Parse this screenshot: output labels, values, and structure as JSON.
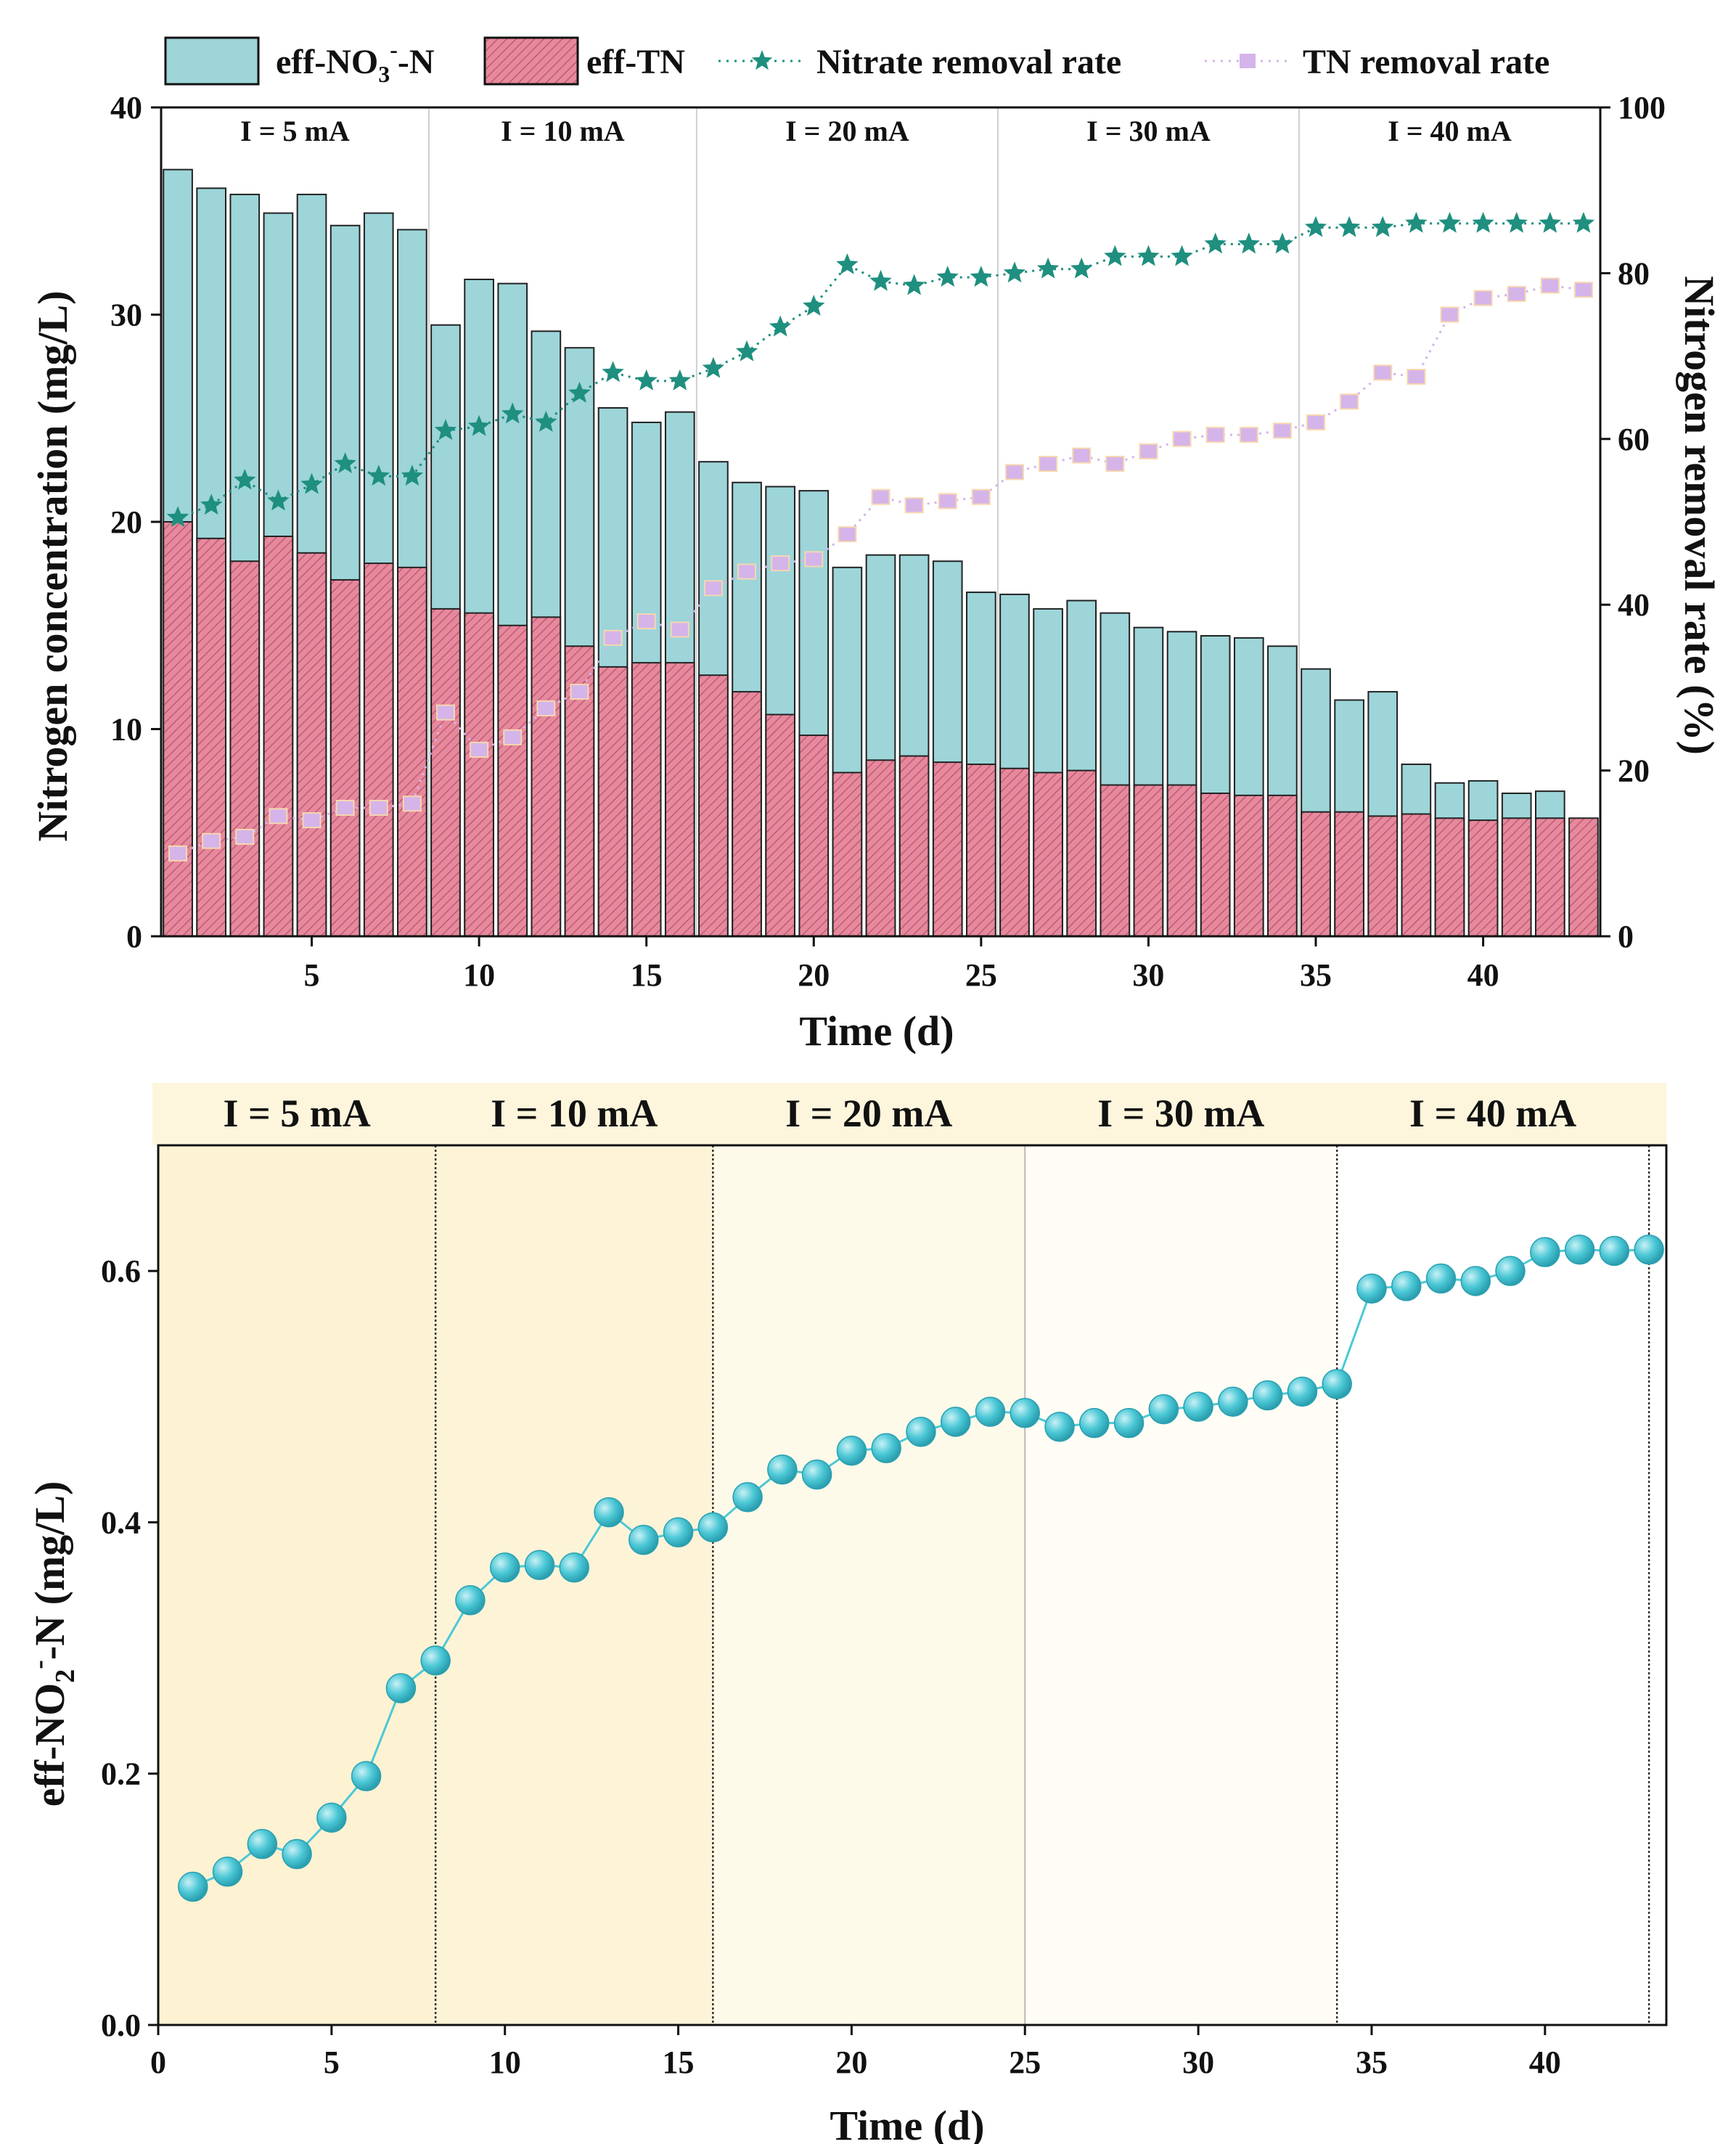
{
  "colors": {
    "no3_bar": "#9dd5d9",
    "tn_bar": "#e6899d",
    "tn_hatch": "#c25a74",
    "nitrate_marker": "#1f8f7f",
    "tn_marker": "#d5b4ea",
    "no2_marker": "#4cc8d6",
    "phase_bg": "#fdf6dc"
  },
  "chart_data": [
    {
      "type": "bar",
      "legend": {
        "no3": {
          "pre": "eff-NO",
          "sub": "3",
          "sup": "-",
          "post": "-N"
        },
        "tn": "eff-TN",
        "nitrate": "Nitrate removal rate",
        "tnrate": "TN removal rate"
      },
      "xlabel": "Time (d)",
      "ylabel": "Nitrogen concentration (mg/L)",
      "y2label": "Nitrogen removal rate (%)",
      "xlim": [
        0.5,
        43.5
      ],
      "ylim": [
        0,
        40
      ],
      "y2lim": [
        0,
        100
      ],
      "xticks": [
        "5",
        "10",
        "15",
        "20",
        "25",
        "30",
        "35",
        "40"
      ],
      "xtick_values": [
        5,
        10,
        15,
        20,
        25,
        30,
        35,
        40
      ],
      "yticks": [
        "0",
        "10",
        "20",
        "30",
        "40"
      ],
      "y2ticks": [
        "0",
        "20",
        "40",
        "60",
        "80",
        "100"
      ],
      "phases": [
        {
          "label": "I = 5 mA",
          "start": 0.5,
          "end": 8.5
        },
        {
          "label": "I = 10 mA",
          "start": 8.5,
          "end": 16.5
        },
        {
          "label": "I = 20 mA",
          "start": 16.5,
          "end": 25.5
        },
        {
          "label": "I = 30 mA",
          "start": 25.5,
          "end": 34.5
        },
        {
          "label": "I = 40 mA",
          "start": 34.5,
          "end": 43.5
        }
      ],
      "days": [
        1,
        2,
        3,
        4,
        5,
        6,
        7,
        8,
        9,
        10,
        11,
        12,
        13,
        14,
        15,
        16,
        17,
        18,
        19,
        20,
        21,
        22,
        23,
        24,
        25,
        26,
        27,
        28,
        29,
        30,
        31,
        32,
        33,
        34,
        35,
        36,
        37,
        38,
        39,
        40,
        41,
        42,
        43
      ],
      "series": [
        {
          "name": "eff-NO3--N",
          "axis": "left",
          "values": [
            37.0,
            36.1,
            35.8,
            34.9,
            35.8,
            34.3,
            34.9,
            34.1,
            29.5,
            31.7,
            31.5,
            29.2,
            28.4,
            25.5,
            24.8,
            25.3,
            22.9,
            21.9,
            21.7,
            21.5,
            17.8,
            18.4,
            18.4,
            18.1,
            16.6,
            16.5,
            15.8,
            16.2,
            15.6,
            14.9,
            14.7,
            14.5,
            14.4,
            14.0,
            12.9,
            11.4,
            11.8,
            8.3,
            7.4,
            7.5,
            6.9,
            7.0,
            null
          ]
        },
        {
          "name": "eff-TN",
          "axis": "left",
          "values": [
            20.0,
            19.2,
            18.1,
            19.3,
            18.5,
            17.2,
            18.0,
            17.8,
            15.8,
            15.6,
            15.0,
            15.4,
            14.0,
            13.0,
            13.2,
            13.2,
            12.6,
            11.8,
            10.7,
            9.7,
            7.9,
            8.5,
            8.7,
            8.4,
            8.3,
            8.1,
            7.9,
            8.0,
            7.3,
            7.3,
            7.3,
            6.9,
            6.8,
            6.8,
            6.0,
            6.0,
            5.8,
            5.9,
            5.7,
            5.6,
            5.7,
            5.7,
            5.7
          ]
        },
        {
          "name": "Nitrate removal rate",
          "axis": "right",
          "values": [
            50.5,
            52,
            55,
            52.5,
            54.5,
            57,
            55.5,
            55.5,
            61,
            61.5,
            63,
            62,
            65.5,
            68,
            67,
            67,
            68.5,
            70.5,
            73.5,
            76,
            81,
            79,
            78.5,
            79.5,
            79.5,
            80,
            80.5,
            80.5,
            82,
            82,
            82,
            83.5,
            83.5,
            83.5,
            85.5,
            85.5,
            85.5,
            86,
            86,
            86,
            86,
            86,
            86
          ]
        },
        {
          "name": "TN removal rate",
          "axis": "right",
          "values": [
            10,
            11.5,
            12,
            14.5,
            14,
            15.5,
            15.5,
            16,
            27,
            22.5,
            24,
            27.5,
            29.5,
            36,
            38,
            37,
            42,
            44,
            45,
            45.5,
            48.5,
            53,
            52,
            52.5,
            53,
            56,
            57,
            58,
            57,
            58.5,
            60,
            60.5,
            60.5,
            61,
            62,
            64.5,
            68,
            67.5,
            75,
            77,
            77.5,
            78.5,
            78
          ]
        }
      ]
    },
    {
      "type": "line",
      "xlabel": "Time (d)",
      "ylabel": {
        "pre": "eff-NO",
        "sub": "2",
        "sup": "-",
        "post": "-N (mg/L)"
      },
      "xlim": [
        0,
        43.5
      ],
      "ylim": [
        0,
        0.7
      ],
      "xticks": [
        "0",
        "5",
        "10",
        "15",
        "20",
        "25",
        "30",
        "35",
        "40"
      ],
      "xtick_values": [
        0,
        5,
        10,
        15,
        20,
        25,
        30,
        35,
        40
      ],
      "yticks": [
        "0.0",
        "0.2",
        "0.4",
        "0.6"
      ],
      "ytick_values": [
        0.0,
        0.2,
        0.4,
        0.6
      ],
      "phases": [
        {
          "label": "I = 5 mA",
          "start": 0,
          "end": 8
        },
        {
          "label": "I = 10 mA",
          "start": 8,
          "end": 16
        },
        {
          "label": "I = 20 mA",
          "start": 16,
          "end": 25
        },
        {
          "label": "I = 30 mA",
          "start": 25,
          "end": 34
        },
        {
          "label": "I = 40 mA",
          "start": 34,
          "end": 43
        }
      ],
      "x": [
        1,
        2,
        3,
        4,
        5,
        6,
        7,
        8,
        9,
        10,
        11,
        12,
        13,
        14,
        15,
        16,
        17,
        18,
        19,
        20,
        21,
        22,
        23,
        24,
        25,
        26,
        27,
        28,
        29,
        30,
        31,
        32,
        33,
        34,
        35,
        36,
        37,
        38,
        39,
        40,
        41,
        42,
        43
      ],
      "values": [
        0.11,
        0.122,
        0.144,
        0.136,
        0.165,
        0.198,
        0.268,
        0.29,
        0.338,
        0.364,
        0.366,
        0.364,
        0.408,
        0.386,
        0.392,
        0.396,
        0.42,
        0.442,
        0.438,
        0.457,
        0.459,
        0.472,
        0.48,
        0.488,
        0.487,
        0.476,
        0.479,
        0.479,
        0.49,
        0.492,
        0.496,
        0.501,
        0.504,
        0.51,
        0.586,
        0.588,
        0.594,
        0.592,
        0.6,
        0.615,
        0.617,
        0.616,
        0.617
      ]
    }
  ]
}
